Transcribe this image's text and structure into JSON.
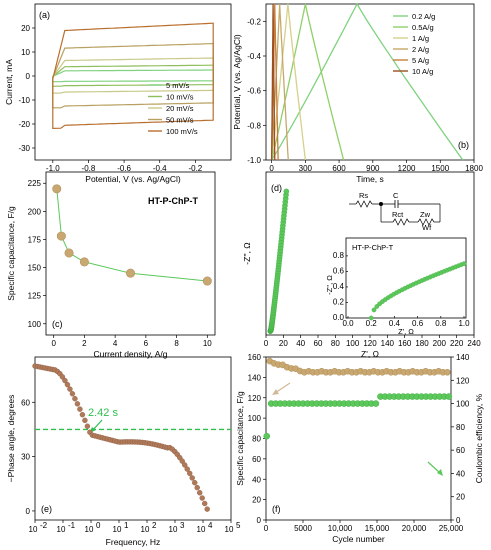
{
  "panels": [
    {
      "id": "a",
      "label": "(a)",
      "type": "line",
      "xlabel": "Potential, V (vs. Ag/AgCl)",
      "ylabel": "Current, mA",
      "xlim": [
        -1.1,
        0.0
      ],
      "ylim": [
        -35,
        30
      ],
      "xticks": [
        "-1.0",
        "-0.8",
        "-0.6",
        "-0.4",
        "-0.2"
      ],
      "xtickvals": [
        -1.0,
        -0.8,
        -0.6,
        -0.4,
        -0.2
      ],
      "yticks": [
        "-30",
        "-20",
        "-10",
        "0",
        "10",
        "20"
      ],
      "ytickvals": [
        -30,
        -20,
        -10,
        0,
        10,
        20
      ],
      "legend_position": "bottom-right",
      "series": [
        {
          "name": "5 mV/s",
          "color": "#7fd27f",
          "upper": 2.5,
          "lower": -2.5
        },
        {
          "name": "10 mV/s",
          "color": "#8fbe5c",
          "upper": 4.5,
          "lower": -4.5
        },
        {
          "name": "20 mV/s",
          "color": "#c9c98a",
          "upper": 7.5,
          "lower": -7.5
        },
        {
          "name": "50 mV/s",
          "color": "#b8a060",
          "upper": 13.5,
          "lower": -14
        },
        {
          "name": "100 mV/s",
          "color": "#b86f2e",
          "upper": 22,
          "lower": -23
        }
      ]
    },
    {
      "id": "b",
      "label": "(b)",
      "type": "line",
      "xlabel": "Time, s",
      "ylabel": "Potential, V (vs. Ag/AgCl)",
      "xlim": [
        -50,
        1800
      ],
      "ylim": [
        -1.0,
        -0.1
      ],
      "xticks": [
        "0",
        "300",
        "600",
        "900",
        "1200",
        "1500",
        "1800"
      ],
      "xtickvals": [
        0,
        300,
        600,
        900,
        1200,
        1500,
        1800
      ],
      "yticks": [
        "-1.0",
        "-0.8",
        "-0.6",
        "-0.4",
        "-0.2"
      ],
      "ytickvals": [
        -1.0,
        -0.8,
        -0.6,
        -0.4,
        -0.2
      ],
      "legend_position": "top-right",
      "series": [
        {
          "name": "0.2 A/g",
          "color": "#7fd27f",
          "t_charge": 760,
          "t_end": 1700
        },
        {
          "name": "0.5A/g",
          "color": "#8fd06a",
          "t_charge": 300,
          "t_end": 640
        },
        {
          "name": "1 A/g",
          "color": "#d6d08a",
          "t_charge": 145,
          "t_end": 300
        },
        {
          "name": "2 A/g",
          "color": "#c6a96a",
          "t_charge": 72,
          "t_end": 148
        },
        {
          "name": "5 A/g",
          "color": "#c57f3a",
          "t_charge": 28,
          "t_end": 58
        },
        {
          "name": "10 A/g",
          "color": "#9c5020",
          "t_charge": 13,
          "t_end": 28
        }
      ]
    },
    {
      "id": "c",
      "label": "(c)",
      "type": "scatter-line",
      "title": "HT-P-ChP-T",
      "xlabel": "Current density, A/g",
      "ylabel": "Specific capacitance, F/g",
      "xlim": [
        -0.5,
        10.5
      ],
      "ylim": [
        90,
        235
      ],
      "xticks": [
        "0",
        "2",
        "4",
        "6",
        "8",
        "10"
      ],
      "xtickvals": [
        0,
        2,
        4,
        6,
        8,
        10
      ],
      "yticks": [
        "100",
        "125",
        "150",
        "175",
        "200",
        "225"
      ],
      "ytickvals": [
        100,
        125,
        150,
        175,
        200,
        225
      ],
      "x": [
        0.2,
        0.5,
        1,
        2,
        5,
        10
      ],
      "y": [
        220,
        178,
        163,
        155,
        145,
        138
      ]
    },
    {
      "id": "d",
      "label": "(d)",
      "type": "scatter",
      "xlabel": "Z', Ω",
      "ylabel": "-Z'', Ω",
      "xlim": [
        0,
        240
      ],
      "ylim": [
        -5,
        205
      ],
      "xticks": [
        "0",
        "20",
        "40",
        "60",
        "80",
        "100",
        "120",
        "140",
        "160",
        "180",
        "200",
        "220",
        "240"
      ],
      "xtickvals": [
        0,
        20,
        40,
        60,
        80,
        100,
        120,
        140,
        160,
        180,
        200,
        220,
        240
      ],
      "circuit": {
        "rs": "Rs",
        "c": "C",
        "rct": "Rct",
        "zw": "Zw",
        "wf": "Wf"
      },
      "inset": {
        "title": "HT-P-ChP-T",
        "xlabel": "Z', Ω",
        "ylabel": "-Z'', Ω",
        "xlim": [
          0,
          1.0
        ],
        "ylim": [
          0,
          0.85
        ],
        "xticks": [
          "0.0",
          "0.2",
          "0.4",
          "0.6",
          "0.8",
          "1.0"
        ],
        "xtickvals": [
          0,
          0.2,
          0.4,
          0.6,
          0.8,
          1.0
        ],
        "yticks": [
          "0.0",
          "0.2",
          "0.4",
          "0.6",
          "0.8"
        ],
        "ytickvals": [
          0,
          0.2,
          0.4,
          0.6,
          0.8
        ]
      }
    },
    {
      "id": "e",
      "label": "(e)",
      "type": "scatter",
      "xlabel": "Frequency, Hz",
      "ylabel": "−Phase angle, degrees",
      "xlim_log": [
        -2,
        5
      ],
      "ylim": [
        -5,
        85
      ],
      "xticks": [
        "10",
        "10",
        "10",
        "10",
        "10",
        "10",
        "10",
        "10"
      ],
      "xexp": [
        "-2",
        "-1",
        "0",
        "1",
        "2",
        "3",
        "4",
        "5"
      ],
      "xtickvals": [
        -2,
        -1,
        0,
        1,
        2,
        3,
        4,
        5
      ],
      "yticks": [
        "0",
        "30",
        "60"
      ],
      "ytickvals": [
        0,
        30,
        60
      ],
      "annotation": "2.42 s",
      "hline_y": 45
    },
    {
      "id": "f",
      "label": "(f)",
      "type": "scatter",
      "xlabel": "Cycle number",
      "ylabel": "Specific capacitance, F/g",
      "y2label": "Coulombic efficiency, %",
      "xlim": [
        0,
        25000
      ],
      "ylim": [
        0,
        160
      ],
      "y2lim": [
        0,
        140
      ],
      "xticks": [
        "0",
        "5000",
        "10,000",
        "15,000",
        "20,000",
        "25,000"
      ],
      "xtickvals": [
        0,
        5000,
        10000,
        15000,
        20000,
        25000
      ],
      "yticks": [
        "0",
        "20",
        "40",
        "60",
        "80",
        "100",
        "120",
        "140",
        "160"
      ],
      "ytickvals": [
        0,
        20,
        40,
        60,
        80,
        100,
        120,
        140,
        160
      ],
      "y2ticks": [
        "0",
        "20",
        "40",
        "60",
        "80",
        "100",
        "120",
        "140"
      ],
      "y2tickvals": [
        0,
        20,
        40,
        60,
        80,
        100,
        120,
        140
      ],
      "capacitance_start": 155,
      "capacitance_end": 145,
      "efficiency_first": 72,
      "efficiency_level": 100,
      "efficiency_after_15000": 106
    }
  ],
  "colors": {
    "green": "#5cc85c",
    "tan": "#c8a870",
    "brown": "#a86a4a",
    "dashed": "#2fbf4f"
  }
}
